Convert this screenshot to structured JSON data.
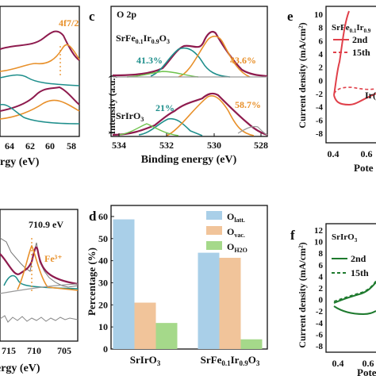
{
  "panels": {
    "c": {
      "letter": "c",
      "title": "O 2p",
      "xlabel": "Binding energy (eV)",
      "ylabel": "Intensity (a.u.)",
      "xticks": [
        "534",
        "532",
        "530",
        "528"
      ],
      "top_sample": "SrFe0.1Ir0.9O3",
      "top_left_pct": "41.3%",
      "top_right_pct": "43.6%",
      "bottom_sample": "SrIrO3",
      "bottom_left_pct": "21%",
      "bottom_right_pct": "58.7%"
    },
    "d": {
      "letter": "d",
      "ylabel": "Percentage (%)",
      "yticks": [
        "0",
        "10",
        "20",
        "30",
        "40",
        "50",
        "60"
      ],
      "legend": [
        "O_latt.",
        "O_vac.",
        "O_H2O"
      ]
    },
    "e": {
      "letter": "e",
      "sample": "SrFe0.1Ir0.9",
      "ylabel": "Current density (mA/cm²)",
      "yticks": [
        "10",
        "8",
        "6",
        "4",
        "2",
        "0",
        "-2",
        "-4",
        "-6",
        "-8"
      ],
      "xticks": [
        "0.4",
        "0.6"
      ],
      "xlabel": "Pote",
      "legend": [
        "2nd",
        "15th"
      ],
      "annotation": "Ir("
    },
    "f": {
      "letter": "f",
      "sample": "SrIrO3",
      "ylabel": "Current density (mA/cm²)",
      "yticks": [
        "12",
        "10",
        "8",
        "6",
        "4",
        "2",
        "0",
        "-2",
        "-4",
        "-6",
        "-8"
      ],
      "xticks": [
        "0.4",
        "0.6"
      ],
      "xlabel": "Pote",
      "legend": [
        "2nd",
        "15th"
      ]
    },
    "a": {
      "label": "4f7/2",
      "xticks": [
        "64",
        "62",
        "60",
        "58"
      ],
      "xlabel": "rgy (eV)"
    },
    "b": {
      "peak": "710.9 eV",
      "ion": "Fe³⁺",
      "xticks": [
        "715",
        "710",
        "705"
      ],
      "xlabel": "Binding energy (eV)"
    }
  },
  "colors": {
    "envelope": "#8e1b4e",
    "teal": "#1f8f8c",
    "orange": "#e8902a",
    "green": "#6cc24a",
    "grey": "#9a9a9a",
    "bar_latt": "#a9cfe8",
    "bar_vac": "#f1c49a",
    "bar_h2o": "#a5d98a",
    "red": "#e0404a",
    "dkgreen": "#1e7a2e"
  },
  "chart_data": {
    "type": "bar",
    "categories": [
      "SrIrO3",
      "SrFe0.1Ir0.9O3"
    ],
    "series": [
      {
        "name": "O_latt.",
        "values": [
          58.7,
          43.6
        ]
      },
      {
        "name": "O_vac.",
        "values": [
          21.0,
          41.3
        ]
      },
      {
        "name": "O_H2O",
        "values": [
          11.8,
          4.4
        ]
      }
    ],
    "ylabel": "Percentage (%)",
    "ylim": [
      0,
      65
    ]
  }
}
